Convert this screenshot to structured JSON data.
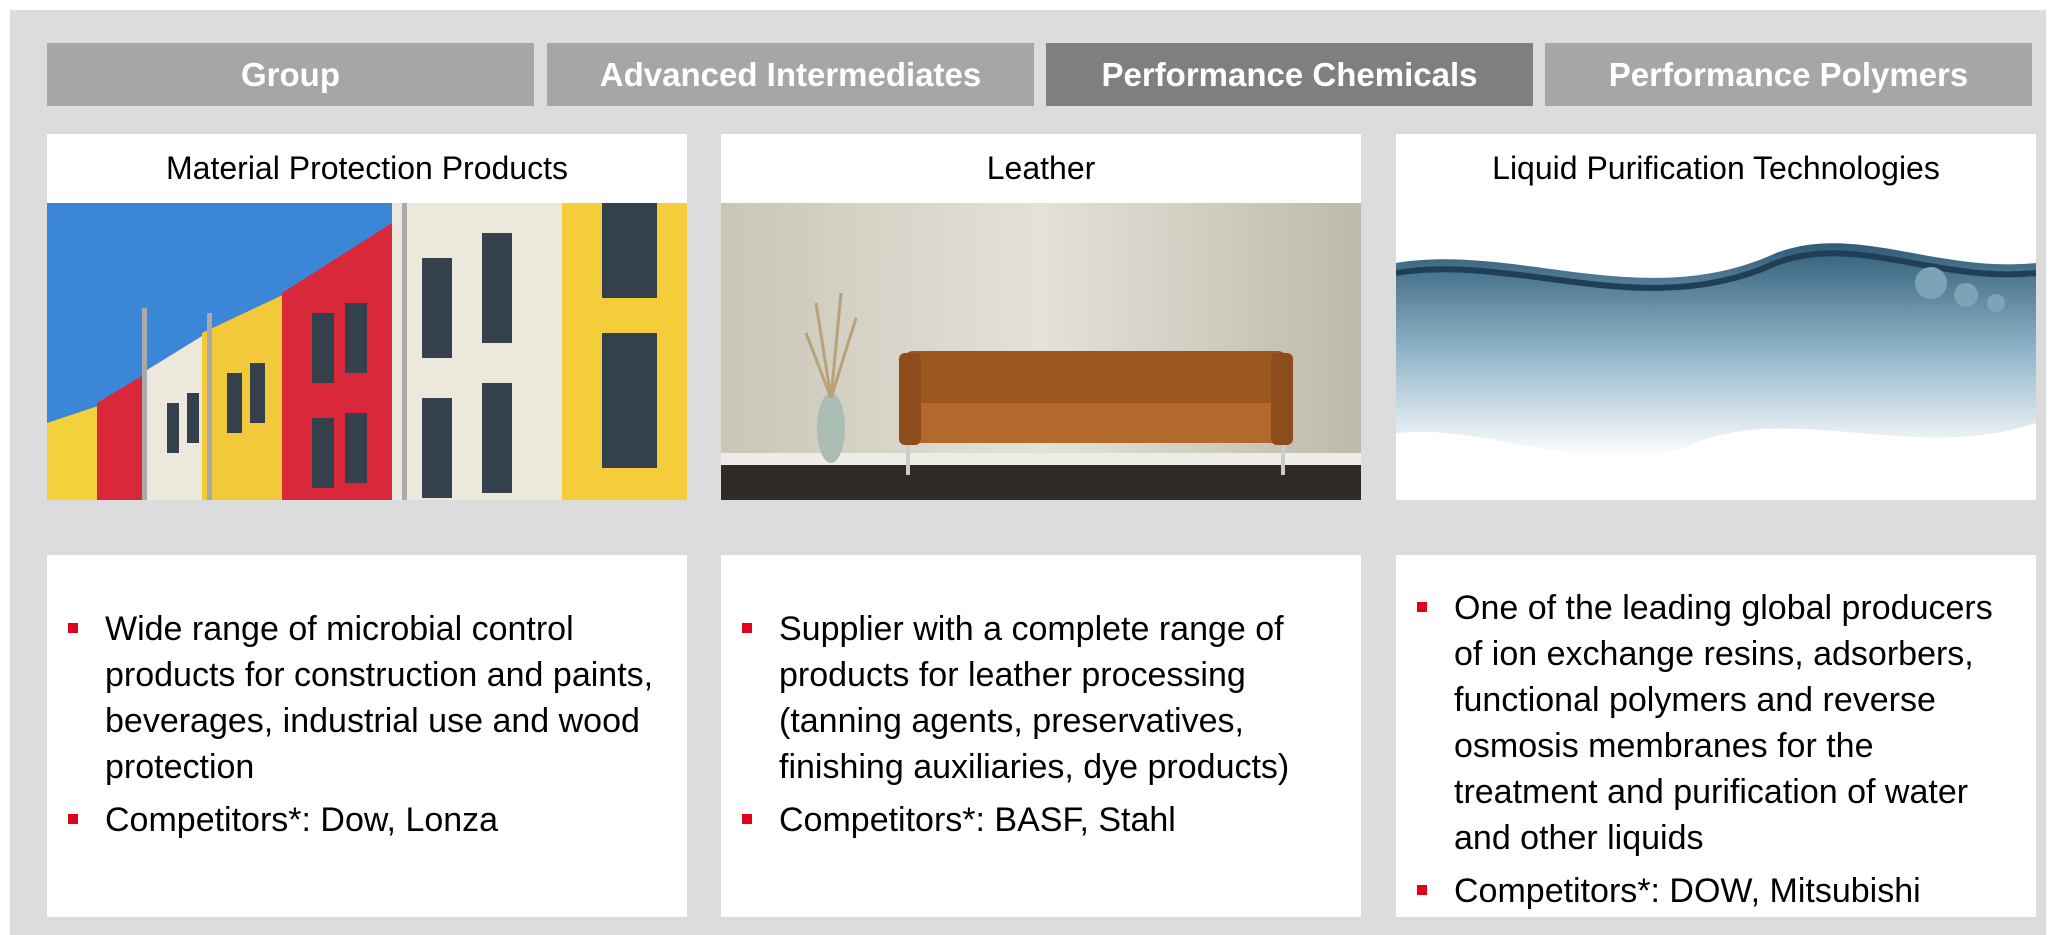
{
  "tabs": [
    "Group",
    "Advanced Intermediates",
    "Performance Chemicals",
    "Performance Polymers"
  ],
  "cards": [
    {
      "title": "Material Protection Products",
      "bullets": [
        "Wide range of microbial control products for construction and paints, beverages, industrial use and wood protection",
        "Competitors*: Dow, Lonza"
      ]
    },
    {
      "title": "Leather",
      "bullets": [
        "Supplier with a complete range of products for leather processing (tanning agents, preservatives, finishing auxiliaries, dye products)",
        "Competitors*: BASF, Stahl"
      ]
    },
    {
      "title": "Liquid Purification Technologies",
      "bullets": [
        "One of the leading global producers of ion exchange resins, adsorbers, functional polymers and reverse osmosis membranes for the treatment and purification of water and other liquids",
        "Competitors*: DOW, Mitsubishi"
      ]
    }
  ]
}
